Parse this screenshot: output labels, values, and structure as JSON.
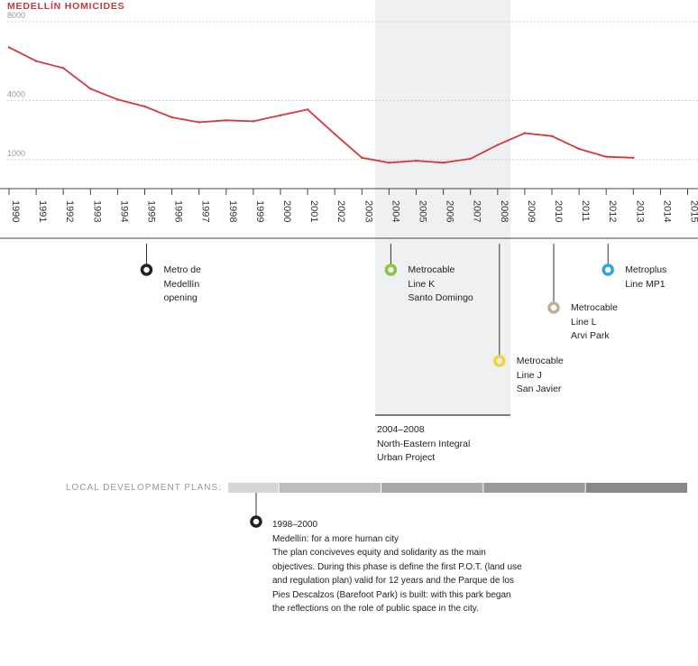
{
  "chart_data": {
    "type": "line",
    "title": "MEDELLÍN HOMICIDES",
    "xlabel": "",
    "ylabel": "",
    "ylim": [
      0,
      8500
    ],
    "y_ticks": [
      1000,
      4000,
      8000
    ],
    "x": [
      1990,
      1991,
      1992,
      1993,
      1994,
      1995,
      1996,
      1997,
      1998,
      1999,
      2000,
      2001,
      2002,
      2003,
      2004,
      2005,
      2006,
      2007,
      2008,
      2009,
      2010,
      2011,
      2012,
      2013,
      2014,
      2015
    ],
    "series": [
      {
        "name": "Homicides",
        "color": "#d23a3f",
        "x": [
          1990,
          1991,
          1992,
          1993,
          1994,
          1995,
          1996,
          1997,
          1998,
          1999,
          2000,
          2001,
          2002,
          2003,
          2004,
          2005,
          2006,
          2007,
          2008,
          2009,
          2010,
          2011,
          2012,
          2013
        ],
        "values": [
          6700,
          6000,
          5650,
          4600,
          4050,
          3700,
          3150,
          2900,
          3000,
          2950,
          3250,
          3550,
          2300,
          1100,
          850,
          950,
          850,
          1050,
          1750,
          2350,
          2200,
          1550,
          1150,
          1100
        ]
      }
    ],
    "highlight": {
      "from": 2004,
      "to": 2008
    }
  },
  "timeline_events": [
    {
      "year": 1995,
      "color": "#222222",
      "lines": [
        "Metro de",
        "Medellín",
        "opening"
      ]
    },
    {
      "year": 2004,
      "color": "#8bc43f",
      "lines": [
        "Metrocable",
        "Line K",
        "Santo Domingo"
      ]
    },
    {
      "year": 2008,
      "color": "#f2d33c",
      "lines": [
        "Metrocable",
        "Line J",
        "San Javier"
      ]
    },
    {
      "year": 2010,
      "color": "#c4ac96",
      "lines": [
        "Metrocable",
        "Line L",
        "Arvi Park"
      ]
    },
    {
      "year": 2012,
      "color": "#2aa7df",
      "lines": [
        "Metroplus",
        "Line MP1"
      ]
    }
  ],
  "project": {
    "years": "2004–2008",
    "name_line1": "North-Eastern Integral",
    "name_line2": "Urban Project"
  },
  "plans": {
    "label": "LOCAL DEVELOPMENT PLANS:",
    "segments": [
      {
        "from": 1998,
        "to": 2000,
        "color": "#d6d6d6"
      },
      {
        "from": 2000,
        "to": 2004,
        "color": "#bdbdbd"
      },
      {
        "from": 2004,
        "to": 2008,
        "color": "#a9a9a9"
      },
      {
        "from": 2008,
        "to": 2012,
        "color": "#9a9a9a"
      },
      {
        "from": 2012,
        "to": 2016,
        "color": "#888888"
      }
    ]
  },
  "plan_detail": {
    "years": "1998–2000",
    "title": "Medellín: for a more human city",
    "lines": [
      "The plan conciveves equity and solidarity as the main",
      "objectives. During this phase is define the first P.O.T. (land use",
      "and regulation plan) valid for 12 years and the Parque de los",
      "Pies Descalzos (Barefoot Park) is built: with this park began",
      "the reflections on the role of public space in the city."
    ]
  },
  "colors": {
    "line": "#d23a3f",
    "title": "#c23a40",
    "grid": "#cccccc",
    "axis": "#444444",
    "highlight": "#eef0f2"
  }
}
